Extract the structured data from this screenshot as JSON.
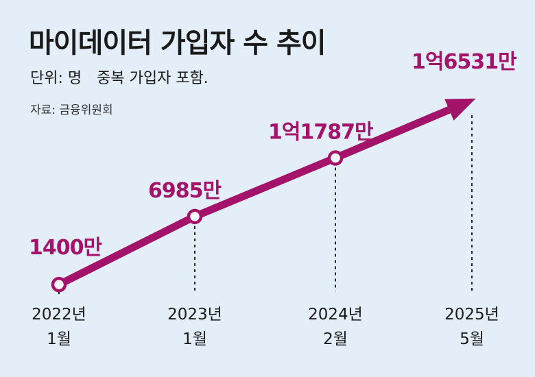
{
  "title": "마이데이터 가입자 수 추이",
  "unit_label": "단위: 명",
  "unit_note": "중복 가입자 포함.",
  "source": "자료: 금융위원회",
  "colors": {
    "accent": "#a4136a",
    "background": "#e3eef8",
    "text": "#1a1a1a"
  },
  "chart_data": {
    "type": "line",
    "title": "마이데이터 가입자 수 추이",
    "xlabel": "",
    "ylabel": "",
    "x": [
      "2022년 1월",
      "2023년 1월",
      "2024년 2월",
      "2025년 5월"
    ],
    "x_lines": [
      [
        "2022년",
        "1월"
      ],
      [
        "2023년",
        "1월"
      ],
      [
        "2024년",
        "2월"
      ],
      [
        "2025년",
        "5월"
      ]
    ],
    "values": [
      14000000,
      69850000,
      117870000,
      165310000
    ],
    "value_labels": [
      "1400만",
      "6985만",
      "1억1787만",
      "1억6531만"
    ],
    "markers": [
      true,
      true,
      true,
      false
    ],
    "ylim": [
      0,
      180000000
    ],
    "grid": false,
    "last_point_arrow": true
  }
}
